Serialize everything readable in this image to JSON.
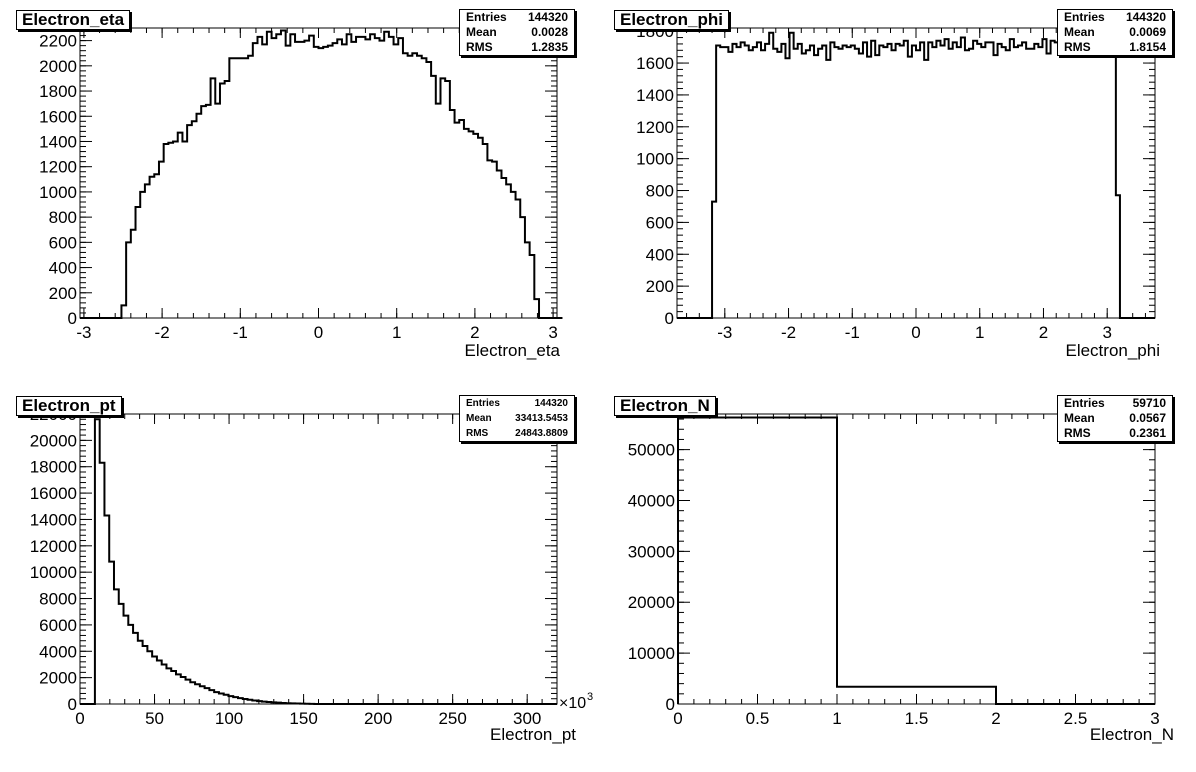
{
  "chart_data": [
    {
      "type": "bar",
      "title": "Electron_eta",
      "xlabel": "Electron_eta",
      "xlim": [
        -3.05,
        3.05
      ],
      "ylim": [
        0,
        2300
      ],
      "xticks": [
        -3,
        -2,
        -1,
        0,
        1,
        2,
        3
      ],
      "yticks": [
        0,
        200,
        400,
        600,
        800,
        1000,
        1200,
        1400,
        1600,
        1800,
        2000,
        2200
      ],
      "x_exponent": "",
      "stats": {
        "entries": "144320",
        "mean": "0.0028",
        "rms": "1.2835"
      },
      "bin_edges_start": -3.0,
      "bin_width": 0.06,
      "values": [
        0,
        0,
        0,
        0,
        0,
        0,
        0,
        0,
        100,
        600,
        700,
        880,
        1000,
        1060,
        1120,
        1140,
        1240,
        1380,
        1390,
        1400,
        1470,
        1400,
        1530,
        1560,
        1620,
        1680,
        1690,
        1900,
        1700,
        1860,
        1880,
        2060,
        2060,
        2060,
        2060,
        2080,
        2180,
        2230,
        2170,
        2270,
        2220,
        2250,
        2280,
        2160,
        2250,
        2190,
        2190,
        2200,
        2240,
        2150,
        2140,
        2150,
        2160,
        2180,
        2210,
        2170,
        2250,
        2190,
        2230,
        2230,
        2210,
        2250,
        2220,
        2200,
        2270,
        2230,
        2170,
        2220,
        2100,
        2080,
        2100,
        2080,
        2060,
        2030,
        1920,
        1700,
        1900,
        1880,
        1650,
        1550,
        1570,
        1500,
        1480,
        1460,
        1430,
        1380,
        1250,
        1240,
        1170,
        1110,
        1060,
        1000,
        940,
        800,
        600,
        500,
        150,
        0,
        0,
        0,
        0,
        0
      ]
    },
    {
      "type": "bar",
      "title": "Electron_phi",
      "xlabel": "Electron_phi",
      "xlim": [
        -3.75,
        3.75
      ],
      "ylim": [
        0,
        1820
      ],
      "xticks": [
        -3,
        -2,
        -1,
        0,
        1,
        2,
        3
      ],
      "yticks": [
        0,
        200,
        400,
        600,
        800,
        1000,
        1200,
        1400,
        1600,
        1800
      ],
      "x_exponent": "",
      "stats": {
        "entries": "144320",
        "mean": "0.0069",
        "rms": "1.8154"
      },
      "bin_edges_start": -3.2,
      "bin_width": 0.064,
      "values": [
        730,
        1710,
        1700,
        1700,
        1670,
        1720,
        1700,
        1730,
        1710,
        1680,
        1700,
        1730,
        1680,
        1720,
        1790,
        1690,
        1670,
        1720,
        1630,
        1790,
        1690,
        1720,
        1660,
        1680,
        1710,
        1650,
        1690,
        1710,
        1620,
        1730,
        1700,
        1690,
        1710,
        1700,
        1710,
        1690,
        1660,
        1730,
        1640,
        1740,
        1650,
        1710,
        1700,
        1720,
        1680,
        1720,
        1710,
        1740,
        1640,
        1710,
        1680,
        1730,
        1620,
        1730,
        1700,
        1740,
        1710,
        1750,
        1690,
        1730,
        1700,
        1760,
        1680,
        1690,
        1740,
        1720,
        1700,
        1730,
        1730,
        1650,
        1720,
        1700,
        1680,
        1750,
        1700,
        1710,
        1730,
        1690,
        1690,
        1720,
        1700,
        1750,
        1660,
        1740,
        1730,
        1760,
        1670,
        1740,
        1680,
        1740,
        1700,
        1720,
        1710,
        1680,
        1700,
        1760,
        1690,
        1680,
        1700,
        770
      ]
    },
    {
      "type": "bar",
      "title": "Electron_pt",
      "xlabel": "Electron_pt",
      "xlim": [
        0,
        320
      ],
      "ylim": [
        0,
        22000
      ],
      "xticks": [
        0,
        50,
        100,
        150,
        200,
        250,
        300
      ],
      "yticks": [
        0,
        2000,
        4000,
        6000,
        8000,
        10000,
        12000,
        14000,
        16000,
        18000,
        20000,
        22000
      ],
      "x_exponent": "×10",
      "x_exponent_power": "3",
      "stats": {
        "entries": "144320",
        "mean": "33413.5453",
        "rms": "24843.8809"
      },
      "bin_edges_start": 10,
      "bin_width": 3.2,
      "values": [
        21600,
        18300,
        14300,
        10800,
        8700,
        7600,
        6700,
        6000,
        5400,
        4800,
        4400,
        4000,
        3600,
        3300,
        3000,
        2700,
        2500,
        2250,
        2050,
        1850,
        1650,
        1500,
        1350,
        1200,
        1050,
        900,
        800,
        700,
        600,
        520,
        450,
        380,
        320,
        270,
        220,
        180,
        150,
        120,
        100,
        80,
        60,
        45,
        35,
        25,
        15,
        10
      ]
    },
    {
      "type": "bar",
      "title": "Electron_N",
      "xlabel": "Electron_N",
      "xlim": [
        0,
        3
      ],
      "ylim": [
        0,
        57000
      ],
      "xticks": [
        0,
        0.5,
        1,
        1.5,
        2,
        2.5,
        3
      ],
      "yticks": [
        0,
        10000,
        20000,
        30000,
        40000,
        50000
      ],
      "x_exponent": "",
      "stats": {
        "entries": "59710",
        "mean": "0.0567",
        "rms": "0.2361"
      },
      "bin_edges_start": 0,
      "bin_width": 1,
      "values": [
        56300,
        3400,
        0
      ]
    }
  ],
  "stat_labels": {
    "entries": "Entries",
    "mean": "Mean",
    "rms": "RMS"
  }
}
